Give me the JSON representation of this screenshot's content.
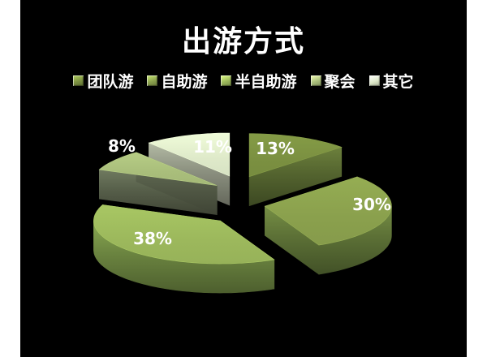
{
  "slide": {
    "background": "#000000",
    "canvas_background": "#ffffff",
    "text_color": "#ffffff"
  },
  "chart_data": {
    "type": "pie",
    "style": "3d-exploded",
    "title": "出游方式",
    "legend_position": "top",
    "total": 100,
    "series": [
      {
        "name": "团队游",
        "value": 13,
        "label": "13%",
        "color": "#7B9041",
        "side": "#54642F"
      },
      {
        "name": "自助游",
        "value": 30,
        "label": "30%",
        "color": "#8AA04D",
        "side": "#5C7036"
      },
      {
        "name": "半自助游",
        "value": 38,
        "label": "38%",
        "color": "#9CB85C",
        "side": "#6B8440"
      },
      {
        "name": "聚会",
        "value": 8,
        "label": "8%",
        "color": "#A9BE7B",
        "side": "#575F4A"
      },
      {
        "name": "其它",
        "value": 11,
        "label": "11%",
        "color": "#DEE9C9",
        "side": "#8C9180"
      }
    ]
  }
}
